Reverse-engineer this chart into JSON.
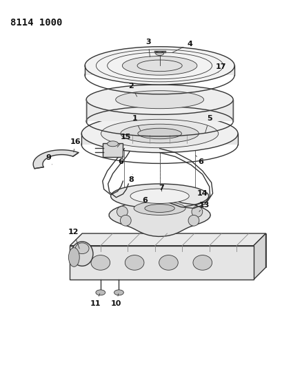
{
  "title": "8114 1000",
  "bg_color": "#ffffff",
  "lc": "#333333",
  "fig_width": 4.1,
  "fig_height": 5.33,
  "dpi": 100
}
